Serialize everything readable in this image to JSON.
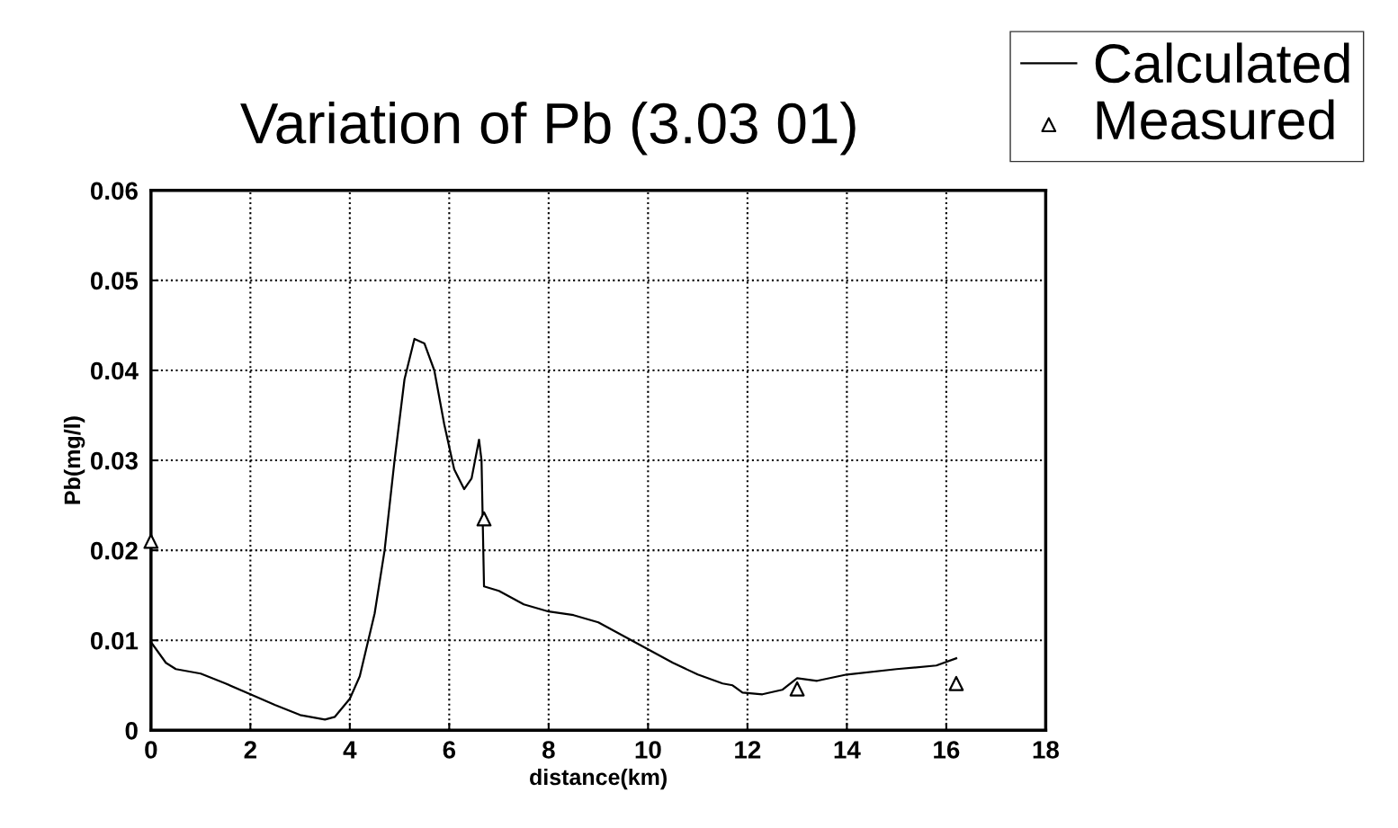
{
  "chart_data": {
    "type": "line",
    "title": "Variation of Pb (3.03 01)",
    "xlabel": "distance(km)",
    "ylabel": "Pb(mg/l)",
    "xlim": [
      0,
      18
    ],
    "xticks": [
      0,
      2,
      4,
      6,
      8,
      10,
      12,
      14,
      16,
      18
    ],
    "ylim": [
      0,
      0.06
    ],
    "yticks": [
      0,
      0.01,
      0.02,
      0.03,
      0.04,
      0.05,
      0.06
    ],
    "grid": true,
    "legend": "top right",
    "series": [
      {
        "name": "Calculated",
        "color": "#000000",
        "marker": "none",
        "x": [
          0,
          0.3,
          0.5,
          1,
          1.5,
          2,
          2.5,
          3,
          3.5,
          3.7,
          4,
          4.2,
          4.5,
          4.7,
          4.9,
          5.1,
          5.3,
          5.5,
          5.7,
          5.9,
          6.1,
          6.3,
          6.45,
          6.6,
          6.65,
          6.7,
          7,
          7.5,
          8,
          8.5,
          9,
          9.5,
          10,
          10.5,
          11,
          11.5,
          11.7,
          11.9,
          12.3,
          12.7,
          13,
          13.4,
          14,
          15,
          15.8,
          16.2
        ],
        "values": [
          0.0098,
          0.0075,
          0.0068,
          0.0063,
          0.0052,
          0.004,
          0.0028,
          0.0017,
          0.0012,
          0.0015,
          0.0035,
          0.006,
          0.013,
          0.02,
          0.03,
          0.039,
          0.0435,
          0.043,
          0.04,
          0.034,
          0.029,
          0.0268,
          0.028,
          0.0323,
          0.03,
          0.016,
          0.0155,
          0.014,
          0.0132,
          0.0128,
          0.012,
          0.0105,
          0.009,
          0.0075,
          0.0062,
          0.0052,
          0.005,
          0.0042,
          0.004,
          0.0045,
          0.0058,
          0.0055,
          0.0062,
          0.0068,
          0.0072,
          0.008
        ]
      },
      {
        "name": "Measured",
        "type": "scatter",
        "color": "#000000",
        "marker": "triangle",
        "x": [
          0,
          6.7,
          13,
          16.2
        ],
        "values": [
          0.021,
          0.0235,
          0.0046,
          0.0052
        ]
      }
    ]
  }
}
